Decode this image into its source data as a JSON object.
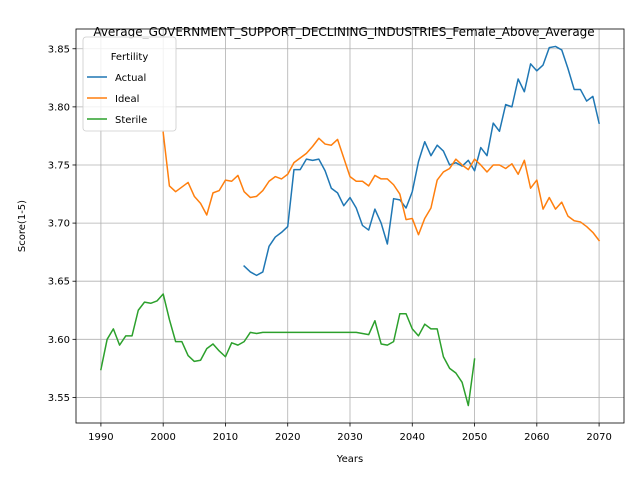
{
  "chart_data": {
    "type": "line",
    "title": "Average_GOVERNMENT_SUPPORT_DECLINING_INDUSTRIES_Female_Above_Average",
    "xlabel": "Years",
    "ylabel": "Score(1-5)",
    "xlim": [
      1986,
      2074
    ],
    "ylim": [
      3.528,
      3.867
    ],
    "x_ticks": [
      1990,
      2000,
      2010,
      2020,
      2030,
      2040,
      2050,
      2060,
      2070
    ],
    "y_ticks": [
      3.55,
      3.6,
      3.65,
      3.7,
      3.75,
      3.8,
      3.85
    ],
    "grid": true,
    "legend": {
      "title": "Fertility",
      "placement": "top-left"
    },
    "series": [
      {
        "name": "Actual",
        "color": "#1f77b4",
        "x": [
          2013,
          2014,
          2015,
          2016,
          2017,
          2018,
          2019,
          2020,
          2021,
          2022,
          2023,
          2024,
          2025,
          2026,
          2027,
          2028,
          2029,
          2030,
          2031,
          2032,
          2033,
          2034,
          2035,
          2036,
          2037,
          2038,
          2039,
          2040,
          2041,
          2042,
          2043,
          2044,
          2045,
          2046,
          2047,
          2048,
          2049,
          2050,
          2051,
          2052,
          2053,
          2054,
          2055,
          2056,
          2057,
          2058,
          2059,
          2060,
          2061,
          2062,
          2063,
          2064,
          2065,
          2066,
          2067,
          2068,
          2069,
          2070
        ],
        "y": [
          3.663,
          3.658,
          3.655,
          3.658,
          3.68,
          3.688,
          3.692,
          3.697,
          3.746,
          3.746,
          3.755,
          3.754,
          3.755,
          3.745,
          3.73,
          3.726,
          3.715,
          3.722,
          3.713,
          3.698,
          3.694,
          3.712,
          3.7,
          3.682,
          3.721,
          3.72,
          3.713,
          3.727,
          3.753,
          3.77,
          3.758,
          3.767,
          3.762,
          3.75,
          3.752,
          3.749,
          3.754,
          3.745,
          3.765,
          3.758,
          3.786,
          3.779,
          3.802,
          3.8,
          3.824,
          3.813,
          3.837,
          3.831,
          3.836,
          3.851,
          3.852,
          3.849,
          3.833,
          3.815,
          3.815,
          3.805,
          3.809,
          3.786
        ]
      },
      {
        "name": "Ideal",
        "color": "#ff7f0e",
        "x": [
          2000,
          2001,
          2002,
          2003,
          2004,
          2005,
          2006,
          2007,
          2008,
          2009,
          2010,
          2011,
          2012,
          2013,
          2014,
          2015,
          2016,
          2017,
          2018,
          2019,
          2020,
          2021,
          2022,
          2023,
          2024,
          2025,
          2026,
          2027,
          2028,
          2029,
          2030,
          2031,
          2032,
          2033,
          2034,
          2035,
          2036,
          2037,
          2038,
          2039,
          2040,
          2041,
          2042,
          2043,
          2044,
          2045,
          2046,
          2047,
          2048,
          2049,
          2050,
          2051,
          2052,
          2053,
          2054,
          2055,
          2056,
          2057,
          2058,
          2059,
          2060,
          2061,
          2062,
          2063,
          2064,
          2065,
          2066,
          2067,
          2068,
          2069,
          2070
        ],
        "y": [
          3.778,
          3.732,
          3.727,
          3.731,
          3.735,
          3.723,
          3.717,
          3.707,
          3.726,
          3.728,
          3.737,
          3.736,
          3.741,
          3.727,
          3.722,
          3.723,
          3.728,
          3.736,
          3.74,
          3.738,
          3.742,
          3.752,
          3.756,
          3.76,
          3.766,
          3.773,
          3.768,
          3.767,
          3.772,
          3.756,
          3.74,
          3.736,
          3.736,
          3.732,
          3.741,
          3.738,
          3.738,
          3.733,
          3.725,
          3.703,
          3.704,
          3.69,
          3.704,
          3.713,
          3.737,
          3.744,
          3.747,
          3.755,
          3.75,
          3.746,
          3.755,
          3.75,
          3.744,
          3.75,
          3.75,
          3.747,
          3.751,
          3.742,
          3.754,
          3.73,
          3.737,
          3.712,
          3.722,
          3.712,
          3.718,
          3.706,
          3.702,
          3.701,
          3.697,
          3.692,
          3.685
        ]
      },
      {
        "name": "Sterile",
        "color": "#2ca02c",
        "x": [
          1990,
          1991,
          1992,
          1993,
          1994,
          1995,
          1996,
          1997,
          1998,
          1999,
          2000,
          2001,
          2002,
          2003,
          2004,
          2005,
          2006,
          2007,
          2008,
          2009,
          2010,
          2011,
          2012,
          2013,
          2014,
          2015,
          2016,
          2017,
          2018,
          2019,
          2020,
          2021,
          2022,
          2023,
          2024,
          2025,
          2026,
          2027,
          2028,
          2029,
          2030,
          2031,
          2032,
          2033,
          2034,
          2035,
          2036,
          2037,
          2038,
          2039,
          2040,
          2041,
          2042,
          2043,
          2044,
          2045,
          2046,
          2047,
          2048,
          2049,
          2050
        ],
        "y": [
          3.574,
          3.6,
          3.609,
          3.595,
          3.603,
          3.603,
          3.625,
          3.632,
          3.631,
          3.633,
          3.639,
          3.617,
          3.598,
          3.598,
          3.586,
          3.581,
          3.582,
          3.592,
          3.596,
          3.59,
          3.585,
          3.597,
          3.595,
          3.598,
          3.606,
          3.605,
          3.606,
          3.606,
          3.606,
          3.606,
          3.606,
          3.606,
          3.606,
          3.606,
          3.606,
          3.606,
          3.606,
          3.606,
          3.606,
          3.606,
          3.606,
          3.606,
          3.605,
          3.604,
          3.616,
          3.596,
          3.595,
          3.598,
          3.622,
          3.622,
          3.609,
          3.603,
          3.613,
          3.609,
          3.609,
          3.585,
          3.575,
          3.571,
          3.563,
          3.543,
          3.583
        ]
      }
    ]
  }
}
